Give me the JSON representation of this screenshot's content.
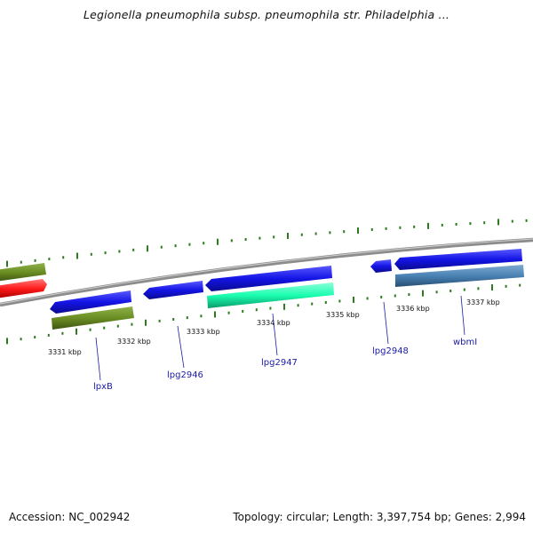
{
  "title": "Legionella pneumophila subsp. pneumophila str. Philadelphia ...",
  "footer": {
    "accession": "Accession: NC_002942",
    "summary": "Topology: circular; Length: 3,397,754 bp; Genes: 2,994"
  },
  "colors": {
    "backbone": "#8c8c8c",
    "tick": "#2d7a1f",
    "gene_label": "#1a1aa8",
    "forward_gene": "#1414e6",
    "olive_gene": "#6b8e23",
    "red_gene": "#ff1a1a",
    "teal_gene": "#1affb0",
    "steel_gene": "#4a82b4"
  },
  "scale": {
    "unit": "kbp",
    "major_ticks": [
      {
        "value": 3331,
        "label": "3331 kbp"
      },
      {
        "value": 3332,
        "label": "3332 kbp"
      },
      {
        "value": 3333,
        "label": "3333 kbp"
      },
      {
        "value": 3334,
        "label": "3334 kbp"
      },
      {
        "value": 3335,
        "label": "3335 kbp"
      },
      {
        "value": 3336,
        "label": "3336 kbp"
      },
      {
        "value": 3337,
        "label": "3337 kbp"
      }
    ]
  },
  "genes": [
    {
      "name": "lpxB",
      "labeled": true
    },
    {
      "name": "lpg2946",
      "labeled": true
    },
    {
      "name": "lpg2947",
      "labeled": true
    },
    {
      "name": "lpg2948",
      "labeled": true
    },
    {
      "name": "wbmI",
      "labeled": true
    }
  ]
}
